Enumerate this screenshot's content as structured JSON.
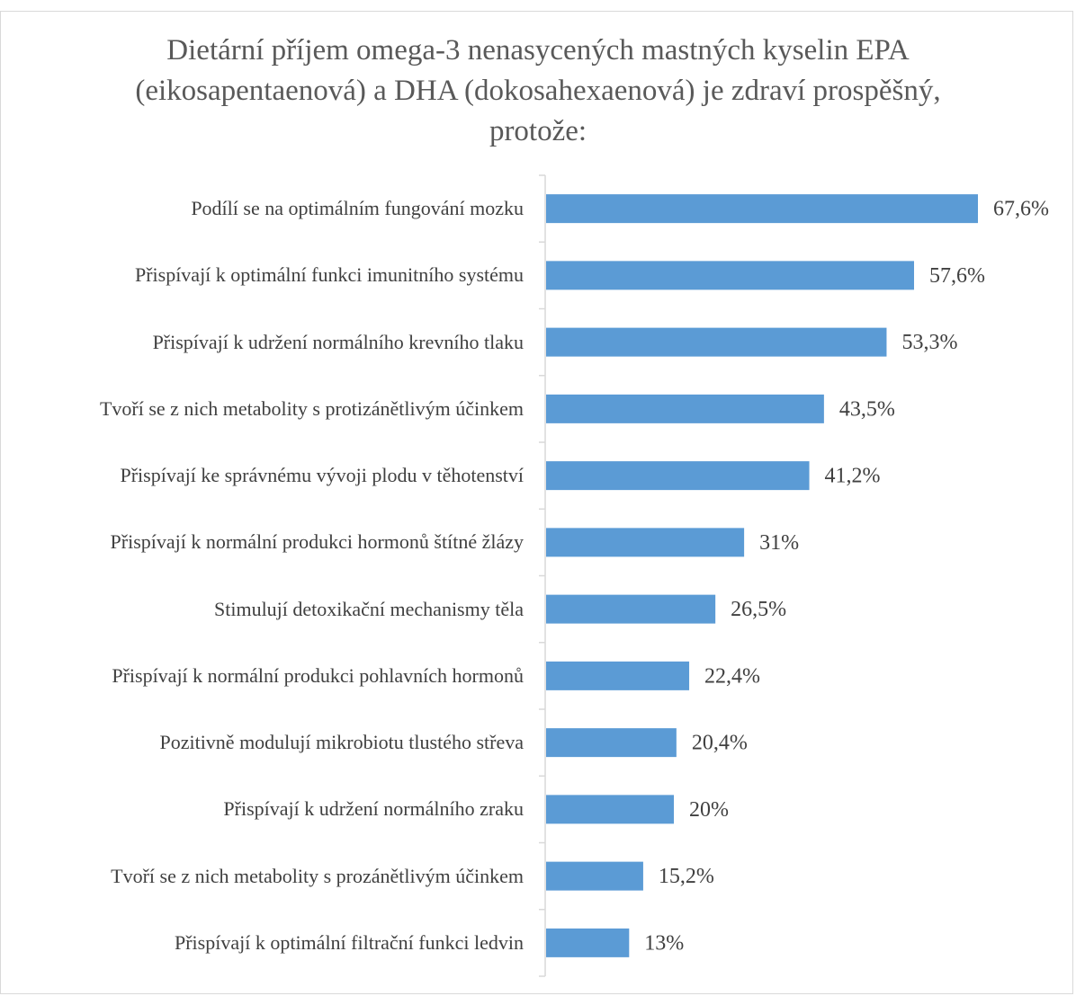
{
  "chart_data": {
    "type": "bar",
    "orientation": "horizontal",
    "title": "Dietární příjem omega-3 nenasycených mastných kyselin EPA (eikosapentaenová) a DHA (dokosahexaenová) je zdraví prospěšný, protože:",
    "categories": [
      "Podílí se na optimálním fungování mozku",
      "Přispívají k optimální funkci imunitního systému",
      "Přispívají k udržení normálního krevního tlaku",
      "Tvoří se z nich metabolity s protizánětlivým účinkem",
      "Přispívají ke správnému vývoji plodu v těhotenství",
      "Přispívají k normální produkci hormonů štítné žlázy",
      "Stimulují detoxikační mechanismy těla",
      "Přispívají k normální produkci pohlavních hormonů",
      "Pozitivně modulují mikrobiotu tlustého střeva",
      "Přispívají k udržení normálního zraku",
      "Tvoří se z nich metabolity s prozánětlivým účinkem",
      "Přispívají k optimální filtrační funkci ledvin"
    ],
    "values": [
      67.6,
      57.6,
      53.3,
      43.5,
      41.2,
      31,
      26.5,
      22.4,
      20.4,
      20,
      15.2,
      13
    ],
    "value_labels": [
      "67,6%",
      "57,6%",
      "53,3%",
      "43,5%",
      "41,2%",
      "31%",
      "26,5%",
      "22,4%",
      "20,4%",
      "20%",
      "15,2%",
      "13%"
    ],
    "color": "#5b9bd5"
  }
}
